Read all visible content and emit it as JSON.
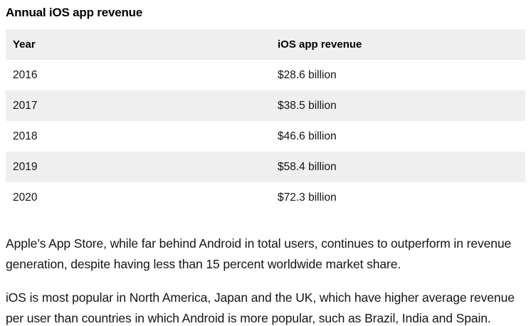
{
  "page": {
    "title": "Annual iOS app revenue"
  },
  "table": {
    "columns": {
      "year_label": "Year",
      "revenue_label": "iOS app revenue"
    },
    "rows": [
      {
        "year": "2016",
        "revenue": "$28.6 billion"
      },
      {
        "year": "2017",
        "revenue": "$38.5 billion"
      },
      {
        "year": "2018",
        "revenue": "$46.6 billion"
      },
      {
        "year": "2019",
        "revenue": "$58.4 billion"
      },
      {
        "year": "2020",
        "revenue": "$72.3 billion"
      }
    ]
  },
  "chart_data": {
    "type": "table",
    "title": "Annual iOS app revenue",
    "categories": [
      "2016",
      "2017",
      "2018",
      "2019",
      "2020"
    ],
    "values": [
      28.6,
      38.5,
      46.6,
      58.4,
      72.3
    ],
    "value_unit": "billion USD",
    "value_labels": [
      "$28.6 billion",
      "$38.5 billion",
      "$46.6 billion",
      "$58.4 billion",
      "$72.3 billion"
    ]
  },
  "paragraphs": {
    "p1": "Apple’s App Store, while far behind Android in total users, continues to outperform in revenue generation, despite having less than 15 percent worldwide market share.",
    "p2": "iOS is most popular in North America, Japan and the UK, which have higher average revenue per user than countries in which Android is more popular, such as Brazil, India and Spain."
  },
  "colors": {
    "row_stripe_bg": "#efefef",
    "page_bg": "#ffffff",
    "text": "#141414"
  }
}
